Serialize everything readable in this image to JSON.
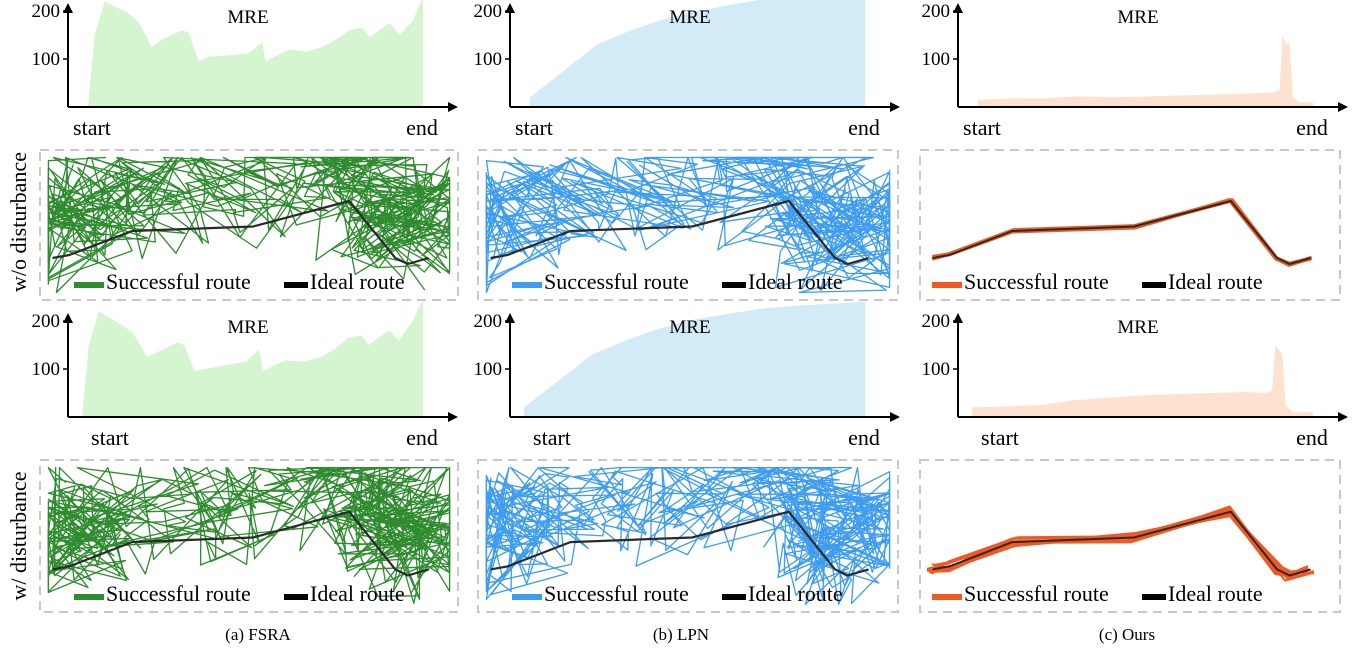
{
  "figure": {
    "row_labels": [
      "w/o disturbance",
      "w/ disturbance"
    ],
    "captions": [
      "(a) FSRA",
      "(b) LPN",
      "(c) Ours"
    ]
  },
  "colors": {
    "fsra_line": "#2e8b2e",
    "fsra_fill": "#d4f5d0",
    "lpn_line": "#3d9cf0",
    "lpn_fill": "#d3ebf7",
    "ours_line": "#f05a22",
    "ours_fill": "#fde3cf",
    "ideal": "#2a2a2a",
    "box": "#c8c8c8"
  },
  "legend": {
    "successful": "Successful route",
    "ideal": "Ideal route"
  },
  "chart_data": [
    {
      "type": "area",
      "title": "MRE",
      "method": "FSRA",
      "condition": "w/o disturbance",
      "xtick_labels": [
        "start",
        "end"
      ],
      "yticks": [
        100,
        200
      ],
      "ylim": [
        0,
        240
      ],
      "x": [
        0,
        0.02,
        0.05,
        0.12,
        0.15,
        0.19,
        0.22,
        0.28,
        0.3,
        0.33,
        0.36,
        0.42,
        0.48,
        0.52,
        0.53,
        0.57,
        0.6,
        0.65,
        0.7,
        0.74,
        0.78,
        0.82,
        0.84,
        0.9,
        0.93,
        0.97,
        1.0
      ],
      "values": [
        0,
        150,
        220,
        195,
        178,
        125,
        140,
        160,
        155,
        95,
        105,
        108,
        112,
        135,
        95,
        110,
        120,
        115,
        125,
        140,
        160,
        165,
        145,
        175,
        150,
        180,
        230
      ]
    },
    {
      "type": "area",
      "title": "MRE",
      "method": "LPN",
      "condition": "w/o disturbance",
      "xtick_labels": [
        "start",
        "end"
      ],
      "yticks": [
        100,
        200
      ],
      "ylim": [
        0,
        240
      ],
      "x": [
        0,
        0.1,
        0.2,
        0.3,
        0.4,
        0.5,
        0.6,
        0.7,
        0.8,
        0.9,
        1.0
      ],
      "values": [
        20,
        75,
        130,
        160,
        183,
        200,
        213,
        225,
        233,
        236,
        240
      ]
    },
    {
      "type": "area",
      "title": "MRE",
      "method": "Ours",
      "condition": "w/o disturbance",
      "xtick_labels": [
        "start",
        "end"
      ],
      "yticks": [
        100,
        200
      ],
      "ylim": [
        0,
        240
      ],
      "x": [
        0,
        0.1,
        0.2,
        0.3,
        0.4,
        0.5,
        0.6,
        0.7,
        0.8,
        0.88,
        0.9,
        0.91,
        0.92,
        0.93,
        0.94,
        0.96,
        1.0
      ],
      "values": [
        15,
        18,
        18,
        22,
        20,
        22,
        24,
        26,
        28,
        30,
        35,
        150,
        130,
        135,
        20,
        10,
        10
      ]
    },
    {
      "type": "area",
      "title": "MRE",
      "method": "FSRA",
      "condition": "w/ disturbance",
      "xtick_labels": [
        "start",
        "end"
      ],
      "yticks": [
        100,
        200
      ],
      "ylim": [
        0,
        240
      ],
      "x": [
        0,
        0.02,
        0.05,
        0.12,
        0.15,
        0.19,
        0.22,
        0.28,
        0.3,
        0.33,
        0.36,
        0.42,
        0.48,
        0.52,
        0.53,
        0.57,
        0.6,
        0.65,
        0.7,
        0.74,
        0.78,
        0.82,
        0.84,
        0.9,
        0.93,
        0.97,
        1.0
      ],
      "values": [
        0,
        150,
        220,
        190,
        175,
        125,
        135,
        155,
        150,
        95,
        100,
        108,
        115,
        140,
        95,
        110,
        118,
        115,
        125,
        140,
        165,
        170,
        150,
        180,
        160,
        200,
        245
      ]
    },
    {
      "type": "area",
      "title": "MRE",
      "method": "LPN",
      "condition": "w/ disturbance",
      "xtick_labels": [
        "start",
        "end"
      ],
      "yticks": [
        100,
        200
      ],
      "ylim": [
        0,
        240
      ],
      "x": [
        0,
        0.1,
        0.2,
        0.3,
        0.4,
        0.5,
        0.6,
        0.7,
        0.8,
        0.9,
        1.0
      ],
      "values": [
        20,
        75,
        130,
        160,
        185,
        203,
        215,
        226,
        232,
        236,
        240
      ]
    },
    {
      "type": "area",
      "title": "MRE",
      "method": "Ours",
      "condition": "w/ disturbance",
      "xtick_labels": [
        "start",
        "end"
      ],
      "yticks": [
        100,
        200
      ],
      "ylim": [
        0,
        240
      ],
      "x": [
        0,
        0.1,
        0.2,
        0.3,
        0.4,
        0.5,
        0.6,
        0.7,
        0.8,
        0.86,
        0.88,
        0.89,
        0.9,
        0.91,
        0.92,
        0.94,
        1.0
      ],
      "values": [
        20,
        22,
        25,
        35,
        40,
        45,
        48,
        50,
        52,
        50,
        55,
        150,
        140,
        130,
        25,
        10,
        10
      ]
    }
  ]
}
